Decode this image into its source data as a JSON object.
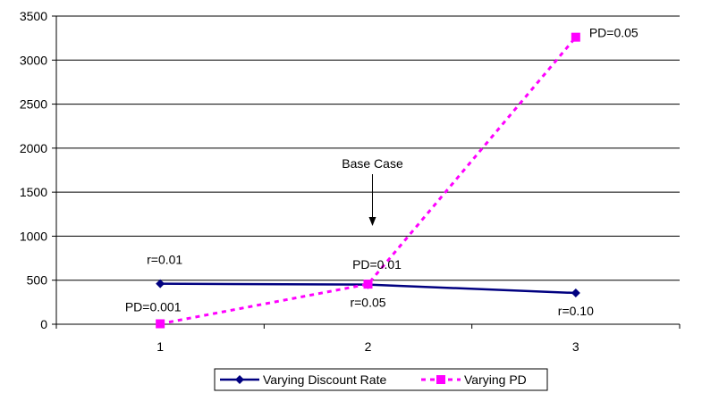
{
  "chart_data": {
    "type": "line",
    "categories": [
      "1",
      "2",
      "3"
    ],
    "y_ticks": [
      "0",
      "500",
      "1000",
      "1500",
      "2000",
      "2500",
      "3000",
      "3500"
    ],
    "ylim": [
      0,
      3500
    ],
    "grid": "horizontal",
    "legend_position": "bottom",
    "series": [
      {
        "name": "Varying Discount Rate",
        "values": [
          460,
          450,
          355
        ],
        "color": "#000080",
        "marker": "diamond",
        "line_style": "solid",
        "point_labels": [
          "r=0.01",
          "r=0.05",
          "r=0.10"
        ]
      },
      {
        "name": "Varying PD",
        "values": [
          5,
          455,
          3260
        ],
        "color": "#ff00ff",
        "marker": "square",
        "line_style": "dashed",
        "point_labels": [
          "PD=0.001",
          "PD=0.01",
          "PD=0.05"
        ]
      }
    ],
    "annotations": [
      {
        "text": "Base Case",
        "category": "2",
        "arrow": "down"
      }
    ]
  }
}
